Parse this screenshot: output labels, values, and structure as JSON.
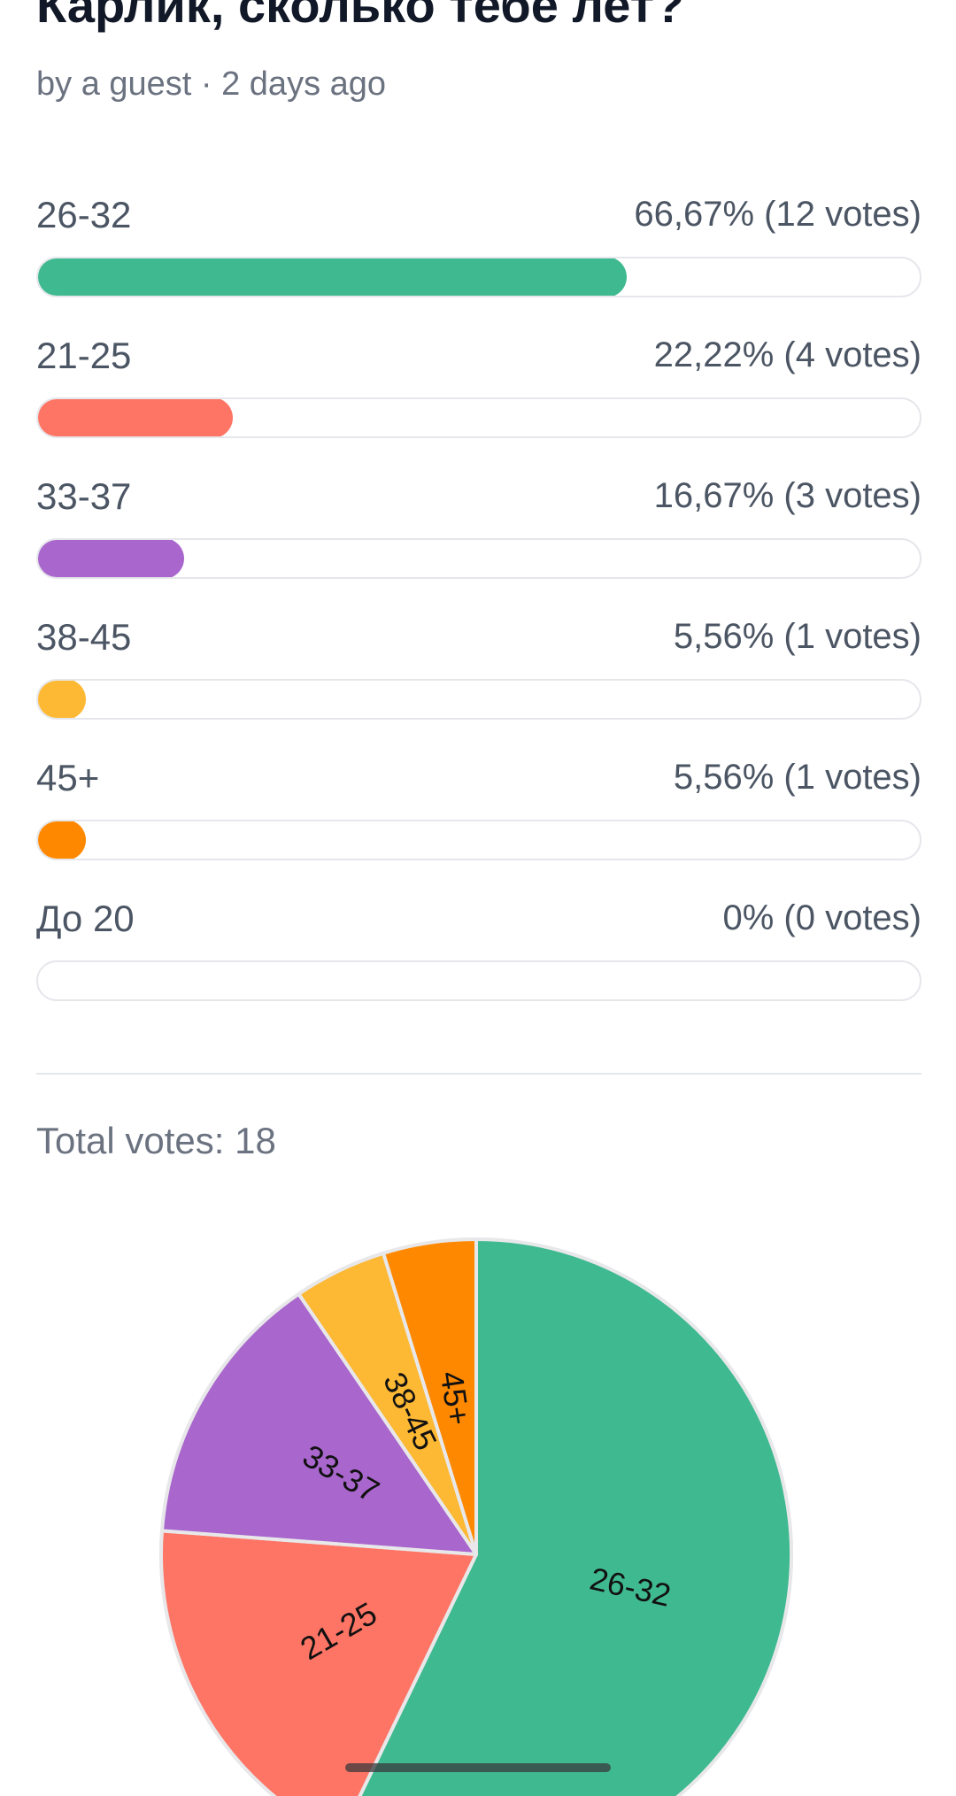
{
  "poll": {
    "title": "Карлик, сколько тебе лет?",
    "meta": "by a guest · 2 days ago"
  },
  "options": [
    {
      "label": "26-32",
      "stats": "66,67% (12 votes)",
      "percent": 66.67,
      "color": "#3fb98f"
    },
    {
      "label": "21-25",
      "stats": "22,22% (4 votes)",
      "percent": 22.22,
      "color": "#fe7565"
    },
    {
      "label": "33-37",
      "stats": "16,67% (3 votes)",
      "percent": 16.67,
      "color": "#a966cd"
    },
    {
      "label": "38-45",
      "stats": "5,56% (1 votes)",
      "percent": 5.56,
      "color": "#fdb834"
    },
    {
      "label": "45+",
      "stats": "5,56% (1 votes)",
      "percent": 5.56,
      "color": "#fe8901"
    },
    {
      "label": "До 20",
      "stats": "0% (0 votes)",
      "percent": 0,
      "color": "#d1d5db"
    }
  ],
  "summary": {
    "total_votes": "Total votes: 18"
  },
  "chart_data": {
    "type": "pie",
    "slices": [
      {
        "label": "26-32",
        "value": 12,
        "color": "#3fb98f"
      },
      {
        "label": "21-25",
        "value": 4,
        "color": "#fe7565"
      },
      {
        "label": "33-37",
        "value": 3,
        "color": "#a966cd"
      },
      {
        "label": "38-45",
        "value": 1,
        "color": "#fdb834"
      },
      {
        "label": "45+",
        "value": 1,
        "color": "#fe8901"
      }
    ],
    "start_angle_deg": 0,
    "direction": "clockwise",
    "title": "",
    "legend": "none"
  }
}
